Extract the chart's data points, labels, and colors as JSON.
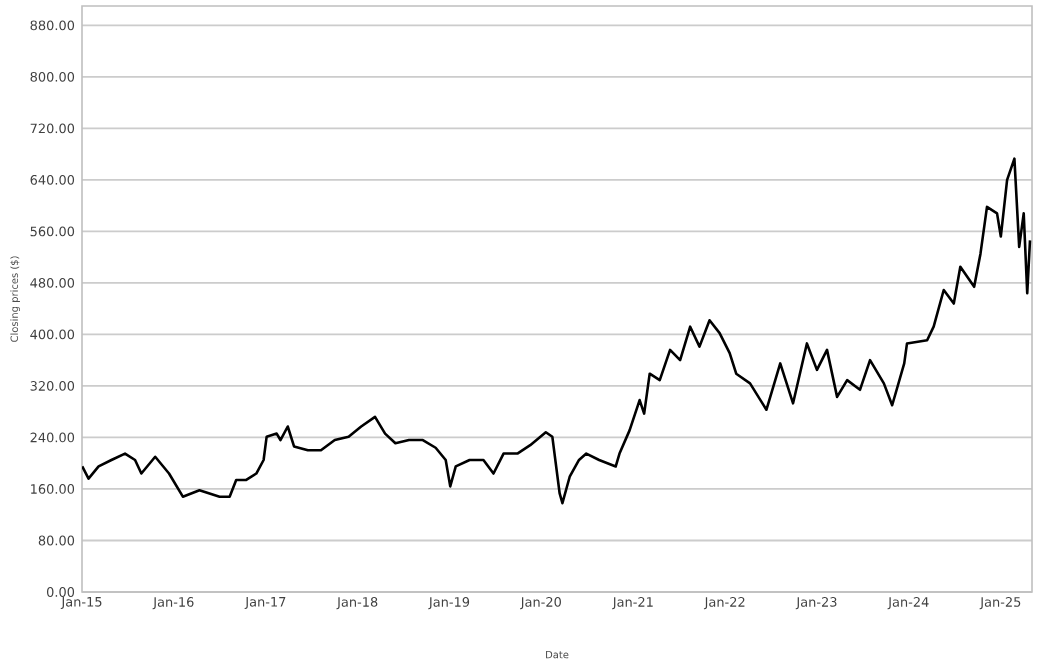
{
  "chart_data": {
    "type": "line",
    "xlabel": "Date",
    "ylabel": "Closing prices ($)",
    "color": "#000000",
    "line_style": "solid",
    "grid": "y",
    "xlim": [
      "2015-01-01",
      "2025-05-05"
    ],
    "ylim": [
      0,
      910
    ],
    "xticks": [
      {
        "value": "2015-01-01",
        "label": "Jan-15"
      },
      {
        "value": "2016-01-01",
        "label": "Jan-16"
      },
      {
        "value": "2017-01-01",
        "label": "Jan-17"
      },
      {
        "value": "2018-01-01",
        "label": "Jan-18"
      },
      {
        "value": "2019-01-01",
        "label": "Jan-19"
      },
      {
        "value": "2020-01-01",
        "label": "Jan-20"
      },
      {
        "value": "2021-01-01",
        "label": "Jan-21"
      },
      {
        "value": "2022-01-01",
        "label": "Jan-22"
      },
      {
        "value": "2023-01-01",
        "label": "Jan-23"
      },
      {
        "value": "2024-01-01",
        "label": "Jan-24"
      },
      {
        "value": "2025-01-01",
        "label": "Jan-25"
      }
    ],
    "yticks": [
      {
        "value": 0,
        "label": "0.00"
      },
      {
        "value": 80,
        "label": "80.00"
      },
      {
        "value": 160,
        "label": "160.00"
      },
      {
        "value": 240,
        "label": "240.00"
      },
      {
        "value": 320,
        "label": "320.00"
      },
      {
        "value": 400,
        "label": "400.00"
      },
      {
        "value": 480,
        "label": "480.00"
      },
      {
        "value": 560,
        "label": "560.00"
      },
      {
        "value": 640,
        "label": "640.00"
      },
      {
        "value": 720,
        "label": "720.00"
      },
      {
        "value": 800,
        "label": "800.00"
      },
      {
        "value": 880,
        "label": "880.00"
      }
    ],
    "x": [
      "2015-01-02",
      "2015-01-27",
      "2015-03-08",
      "2015-04-28",
      "2015-06-21",
      "2015-07-31",
      "2015-08-25",
      "2015-10-19",
      "2015-12-13",
      "2016-02-06",
      "2016-04-12",
      "2016-07-01",
      "2016-08-10",
      "2016-09-05",
      "2016-10-15",
      "2016-11-24",
      "2016-12-23",
      "2017-01-04",
      "2017-02-13",
      "2017-02-28",
      "2017-03-29",
      "2017-04-23",
      "2017-06-17",
      "2017-08-08",
      "2017-10-02",
      "2017-11-26",
      "2018-01-15",
      "2018-03-11",
      "2018-04-20",
      "2018-05-31",
      "2018-07-24",
      "2018-09-17",
      "2018-11-07",
      "2018-12-17",
      "2019-01-04",
      "2019-01-26",
      "2019-03-22",
      "2019-05-16",
      "2019-06-25",
      "2019-08-04",
      "2019-09-28",
      "2019-11-18",
      "2020-01-19",
      "2020-02-14",
      "2020-03-14",
      "2020-03-25",
      "2020-04-23",
      "2020-05-30",
      "2020-06-28",
      "2020-08-18",
      "2020-10-23",
      "2020-11-07",
      "2020-12-17",
      "2021-01-26",
      "2021-02-13",
      "2021-03-07",
      "2021-04-16",
      "2021-05-27",
      "2021-07-06",
      "2021-08-15",
      "2021-09-21",
      "2021-10-31",
      "2021-12-10",
      "2022-01-19",
      "2022-02-14",
      "2022-04-10",
      "2022-06-14",
      "2022-08-08",
      "2022-09-28",
      "2022-11-22",
      "2023-01-01",
      "2023-02-10",
      "2023-03-22",
      "2023-05-01",
      "2023-06-21",
      "2023-07-31",
      "2023-09-24",
      "2023-10-27",
      "2023-12-14",
      "2023-12-25",
      "2024-03-14",
      "2024-04-09",
      "2024-05-19",
      "2024-06-28",
      "2024-07-24",
      "2024-09-17",
      "2024-10-12",
      "2024-11-07",
      "2024-12-17",
      "2025-01-01",
      "2025-01-26",
      "2025-02-24",
      "2025-03-15",
      "2025-04-02",
      "2025-04-16",
      "2025-04-27"
    ],
    "values": [
      195,
      176,
      195,
      205,
      215,
      205,
      184,
      210,
      184,
      148,
      158,
      148,
      148,
      174,
      174,
      184,
      205,
      241,
      246,
      236,
      257,
      226,
      220,
      220,
      236,
      241,
      257,
      272,
      246,
      231,
      236,
      236,
      224,
      205,
      164,
      195,
      205,
      205,
      184,
      215,
      215,
      228,
      248,
      241,
      153,
      138,
      179,
      205,
      215,
      205,
      195,
      215,
      251,
      298,
      277,
      339,
      329,
      376,
      360,
      412,
      381,
      422,
      402,
      371,
      339,
      324,
      283,
      355,
      293,
      386,
      345,
      376,
      303,
      329,
      314,
      360,
      324,
      290,
      355,
      386,
      391,
      412,
      469,
      448,
      505,
      474,
      525,
      598,
      588,
      552,
      640,
      673,
      536,
      588,
      464,
      546
    ]
  }
}
